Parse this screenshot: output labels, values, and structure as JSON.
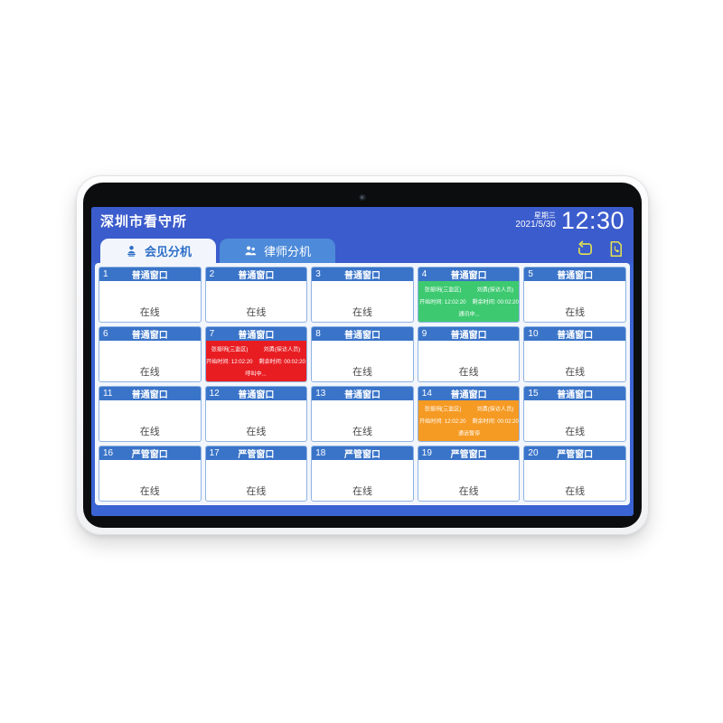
{
  "header": {
    "facility_name": "深圳市看守所",
    "weekday": "星期三",
    "date": "2021/5/30",
    "time": "12:30"
  },
  "tabs": [
    {
      "id": "meeting",
      "label": "会见分机",
      "active": true,
      "icon": "meeting-person-icon"
    },
    {
      "id": "lawyer",
      "label": "律师分机",
      "active": false,
      "icon": "lawyer-people-icon"
    }
  ],
  "toolbar": {
    "icons": [
      {
        "name": "refresh-icon"
      },
      {
        "name": "call-record-icon"
      }
    ]
  },
  "call_detail_labels": {
    "start": "开始时间:",
    "remaining": "剩余时间:"
  },
  "colors": {
    "header_blue": "#3b5ccc",
    "screen_blue": "#3a63d3",
    "panel_bg": "#f2f6fc",
    "tab_inactive": "#4d8ad9",
    "tab_active_text": "#2e6fc8",
    "cell_header": "#3a74c9",
    "talking_green": "#3dc970",
    "calling_red": "#e81d22",
    "paused_orange": "#f59a23",
    "icon_yellow": "#e6e34f"
  },
  "windows": [
    {
      "num": "1",
      "title": "普通窗口",
      "state": "online",
      "status": "在线"
    },
    {
      "num": "2",
      "title": "普通窗口",
      "state": "online",
      "status": "在线"
    },
    {
      "num": "3",
      "title": "普通窗口",
      "state": "online",
      "status": "在线"
    },
    {
      "num": "4",
      "title": "普通窗口",
      "state": "talking",
      "status": "通讯中...",
      "detainee": "张振明(三监区)",
      "visitor": "刘勇(探访人员)",
      "start_time": "12:02:20",
      "remaining_time": "00:02:20"
    },
    {
      "num": "5",
      "title": "普通窗口",
      "state": "online",
      "status": "在线"
    },
    {
      "num": "6",
      "title": "普通窗口",
      "state": "online",
      "status": "在线"
    },
    {
      "num": "7",
      "title": "普通窗口",
      "state": "calling",
      "status": "呼叫中...",
      "detainee": "张振明(三监区)",
      "visitor": "刘勇(探访人员)",
      "start_time": "12:02:20",
      "remaining_time": "00:02:20"
    },
    {
      "num": "8",
      "title": "普通窗口",
      "state": "online",
      "status": "在线"
    },
    {
      "num": "9",
      "title": "普通窗口",
      "state": "online",
      "status": "在线"
    },
    {
      "num": "10",
      "title": "普通窗口",
      "state": "online",
      "status": "在线"
    },
    {
      "num": "11",
      "title": "普通窗口",
      "state": "online",
      "status": "在线"
    },
    {
      "num": "12",
      "title": "普通窗口",
      "state": "online",
      "status": "在线"
    },
    {
      "num": "13",
      "title": "普通窗口",
      "state": "online",
      "status": "在线"
    },
    {
      "num": "14",
      "title": "普通窗口",
      "state": "paused",
      "status": "通话暂停",
      "detainee": "张振明(三监区)",
      "visitor": "刘勇(探访人员)",
      "start_time": "12:02:20",
      "remaining_time": "00:02:20"
    },
    {
      "num": "15",
      "title": "普通窗口",
      "state": "online",
      "status": "在线"
    },
    {
      "num": "16",
      "title": "严管窗口",
      "state": "online",
      "status": "在线"
    },
    {
      "num": "17",
      "title": "严管窗口",
      "state": "online",
      "status": "在线"
    },
    {
      "num": "18",
      "title": "严管窗口",
      "state": "online",
      "status": "在线"
    },
    {
      "num": "19",
      "title": "严管窗口",
      "state": "online",
      "status": "在线"
    },
    {
      "num": "20",
      "title": "严管窗口",
      "state": "online",
      "status": "在线"
    }
  ]
}
